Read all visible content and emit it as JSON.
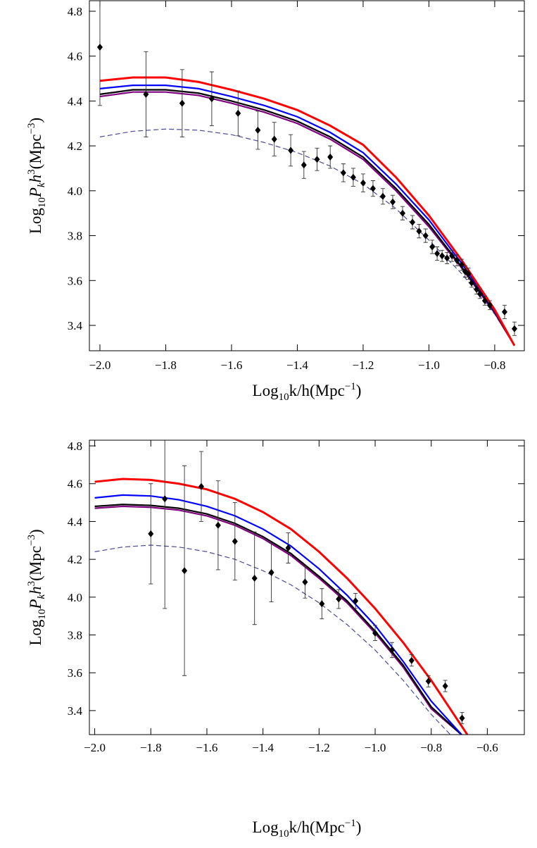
{
  "chart_data": [
    {
      "type": "scatter",
      "xlabel_parts": [
        "Log",
        "10",
        "k/h(Mpc",
        "−1",
        ")"
      ],
      "ylabel_parts": [
        "Log",
        "10",
        "P",
        "k",
        "h",
        "3",
        "(Mpc",
        "−3",
        ")"
      ],
      "xlim": [
        -2.032,
        -0.71
      ],
      "ylim": [
        3.287,
        4.847
      ],
      "xticks": [
        {
          "value": -2.0,
          "label": "−2.0"
        },
        {
          "value": -1.8,
          "label": "−1.8"
        },
        {
          "value": -1.6,
          "label": "−1.6"
        },
        {
          "value": -1.4,
          "label": "−1.4"
        },
        {
          "value": -1.2,
          "label": "−1.2"
        },
        {
          "value": -1.0,
          "label": "−1.0"
        },
        {
          "value": -0.8,
          "label": "−0.8"
        }
      ],
      "yticks": [
        3.4,
        3.6,
        3.8,
        {
          "value": 4.0,
          "label": "4.0"
        },
        4.2,
        4.4,
        4.6,
        4.8
      ],
      "points": {
        "color": "#000000",
        "x": [
          -2.0,
          -1.86,
          -1.75,
          -1.66,
          -1.58,
          -1.52,
          -1.47,
          -1.42,
          -1.38,
          -1.34,
          -1.3,
          -1.26,
          -1.23,
          -1.2,
          -1.17,
          -1.14,
          -1.11,
          -1.08,
          -1.05,
          -1.03,
          -1.01,
          -0.99,
          -0.975,
          -0.96,
          -0.945,
          -0.93,
          -0.915,
          -0.9,
          -0.89,
          -0.88,
          -0.87,
          -0.855,
          -0.845,
          -0.83,
          -0.815,
          -0.77,
          -0.74
        ],
        "values": [
          4.64,
          4.43,
          4.39,
          4.41,
          4.345,
          4.27,
          4.23,
          4.18,
          4.115,
          4.14,
          4.15,
          4.08,
          4.06,
          4.035,
          4.01,
          3.975,
          3.95,
          3.9,
          3.86,
          3.82,
          3.8,
          3.75,
          3.72,
          3.71,
          3.7,
          3.71,
          3.69,
          3.67,
          3.64,
          3.63,
          3.59,
          3.56,
          3.54,
          3.51,
          3.49,
          3.46,
          3.385
        ],
        "errors": [
          0.26,
          0.19,
          0.15,
          0.12,
          0.1,
          0.085,
          0.075,
          0.07,
          0.06,
          0.05,
          0.05,
          0.04,
          0.04,
          0.04,
          0.035,
          0.035,
          0.03,
          0.03,
          0.03,
          0.03,
          0.03,
          0.03,
          0.03,
          0.025,
          0.025,
          0.025,
          0.025,
          0.025,
          0.025,
          0.025,
          0.02,
          0.02,
          0.02,
          0.02,
          0.02,
          0.03,
          0.03
        ]
      },
      "series": [
        {
          "color": "#4b4b9a",
          "dashed": true,
          "x": [
            -2.0,
            -1.9,
            -1.8,
            -1.7,
            -1.6,
            -1.5,
            -1.4,
            -1.3,
            -1.2,
            -1.1,
            -1.0,
            -0.9,
            -0.8,
            -0.74
          ],
          "values": [
            4.24,
            4.265,
            4.275,
            4.27,
            4.25,
            4.215,
            4.17,
            4.11,
            4.03,
            3.92,
            3.78,
            3.63,
            3.45,
            3.31
          ]
        },
        {
          "color": "#800080",
          "x": [
            -2.0,
            -1.9,
            -1.8,
            -1.7,
            -1.6,
            -1.5,
            -1.4,
            -1.3,
            -1.2,
            -1.1,
            -1.0,
            -0.9,
            -0.8,
            -0.74
          ],
          "values": [
            4.42,
            4.44,
            4.44,
            4.425,
            4.39,
            4.35,
            4.3,
            4.23,
            4.14,
            4.0,
            3.84,
            3.655,
            3.455,
            3.31
          ]
        },
        {
          "color": "#000000",
          "x": [
            -2.0,
            -1.9,
            -1.8,
            -1.7,
            -1.6,
            -1.5,
            -1.4,
            -1.3,
            -1.2,
            -1.1,
            -1.0,
            -0.9,
            -0.8,
            -0.74
          ],
          "values": [
            4.43,
            4.45,
            4.45,
            4.435,
            4.4,
            4.36,
            4.31,
            4.24,
            4.15,
            4.01,
            3.85,
            3.66,
            3.46,
            3.31
          ]
        },
        {
          "color": "#0000ff",
          "x": [
            -2.0,
            -1.9,
            -1.8,
            -1.7,
            -1.6,
            -1.5,
            -1.4,
            -1.3,
            -1.2,
            -1.1,
            -1.0,
            -0.9,
            -0.8,
            -0.74
          ],
          "values": [
            4.455,
            4.47,
            4.47,
            4.455,
            4.42,
            4.38,
            4.33,
            4.26,
            4.17,
            4.03,
            3.87,
            3.675,
            3.465,
            3.31
          ]
        },
        {
          "color": "#ff0000",
          "x": [
            -2.0,
            -1.9,
            -1.8,
            -1.7,
            -1.6,
            -1.5,
            -1.4,
            -1.3,
            -1.2,
            -1.1,
            -1.0,
            -0.9,
            -0.8,
            -0.74
          ],
          "values": [
            4.49,
            4.505,
            4.505,
            4.485,
            4.45,
            4.41,
            4.36,
            4.29,
            4.205,
            4.06,
            3.89,
            3.69,
            3.47,
            3.31
          ]
        }
      ]
    },
    {
      "type": "scatter",
      "xlabel_parts": [
        "Log",
        "10",
        "k/h(Mpc",
        "−1",
        ")"
      ],
      "ylabel_parts": [
        "Log",
        "10",
        "P",
        "k",
        "h",
        "3",
        "(Mpc",
        "−3",
        ")"
      ],
      "xlim": [
        -2.019,
        -0.468
      ],
      "ylim": [
        3.273,
        4.83
      ],
      "xticks": [
        {
          "value": -2.0,
          "label": "−2.0"
        },
        {
          "value": -1.8,
          "label": "−1.8"
        },
        {
          "value": -1.6,
          "label": "−1.6"
        },
        {
          "value": -1.4,
          "label": "−1.4"
        },
        {
          "value": -1.2,
          "label": "−1.2"
        },
        {
          "value": -1.0,
          "label": "−1.0"
        },
        {
          "value": -0.8,
          "label": "−0.8"
        },
        {
          "value": -0.6,
          "label": "−0.6"
        }
      ],
      "yticks": [
        3.4,
        3.6,
        3.8,
        {
          "value": 4.0,
          "label": "4.0"
        },
        4.2,
        4.4,
        4.6,
        4.8
      ],
      "points": {
        "color": "#000000",
        "x": [
          -1.8,
          -1.75,
          -1.68,
          -1.62,
          -1.56,
          -1.5,
          -1.43,
          -1.37,
          -1.31,
          -1.25,
          -1.19,
          -1.13,
          -1.07,
          -1.0,
          -0.94,
          -0.87,
          -0.81,
          -0.75,
          -0.69
        ],
        "values": [
          4.335,
          4.52,
          4.14,
          4.585,
          4.38,
          4.295,
          4.1,
          4.13,
          4.26,
          4.08,
          3.965,
          3.99,
          3.98,
          3.81,
          3.72,
          3.665,
          3.555,
          3.53,
          3.36
        ],
        "errors": [
          0.265,
          0.58,
          0.555,
          0.185,
          0.235,
          0.205,
          0.245,
          0.155,
          0.08,
          0.085,
          0.08,
          0.05,
          0.04,
          0.04,
          0.04,
          0.03,
          0.03,
          0.03,
          0.03
        ]
      },
      "series": [
        {
          "color": "#4b4b9a",
          "dashed": true,
          "x": [
            -2.0,
            -1.9,
            -1.8,
            -1.7,
            -1.6,
            -1.5,
            -1.4,
            -1.3,
            -1.2,
            -1.1,
            -1.0,
            -0.9,
            -0.8,
            -0.73
          ],
          "values": [
            4.24,
            4.265,
            4.275,
            4.265,
            4.24,
            4.2,
            4.14,
            4.065,
            3.97,
            3.855,
            3.72,
            3.56,
            3.38,
            3.27
          ]
        },
        {
          "color": "#800080",
          "x": [
            -2.0,
            -1.9,
            -1.8,
            -1.7,
            -1.6,
            -1.5,
            -1.4,
            -1.3,
            -1.2,
            -1.1,
            -1.0,
            -0.9,
            -0.8,
            -0.69
          ],
          "values": [
            4.47,
            4.48,
            4.475,
            4.46,
            4.43,
            4.38,
            4.31,
            4.22,
            4.1,
            3.97,
            3.81,
            3.63,
            3.41,
            3.27
          ]
        },
        {
          "color": "#000000",
          "x": [
            -2.0,
            -1.9,
            -1.8,
            -1.7,
            -1.6,
            -1.5,
            -1.4,
            -1.3,
            -1.2,
            -1.1,
            -1.0,
            -0.9,
            -0.8,
            -0.69
          ],
          "values": [
            4.48,
            4.49,
            4.485,
            4.47,
            4.44,
            4.39,
            4.32,
            4.23,
            4.11,
            3.98,
            3.82,
            3.64,
            3.42,
            3.27
          ]
        },
        {
          "color": "#0000ff",
          "x": [
            -2.0,
            -1.9,
            -1.8,
            -1.7,
            -1.6,
            -1.5,
            -1.4,
            -1.3,
            -1.2,
            -1.1,
            -1.0,
            -0.9,
            -0.8,
            -0.69
          ],
          "values": [
            4.525,
            4.54,
            4.535,
            4.515,
            4.48,
            4.43,
            4.36,
            4.27,
            4.15,
            4.01,
            3.85,
            3.66,
            3.45,
            3.27
          ]
        },
        {
          "color": "#ff0000",
          "x": [
            -2.0,
            -1.9,
            -1.8,
            -1.7,
            -1.6,
            -1.5,
            -1.4,
            -1.3,
            -1.2,
            -1.1,
            -1.0,
            -0.9,
            -0.8,
            -0.67
          ],
          "values": [
            4.61,
            4.625,
            4.62,
            4.6,
            4.57,
            4.52,
            4.45,
            4.36,
            4.24,
            4.1,
            3.94,
            3.76,
            3.56,
            3.27
          ]
        }
      ]
    }
  ]
}
